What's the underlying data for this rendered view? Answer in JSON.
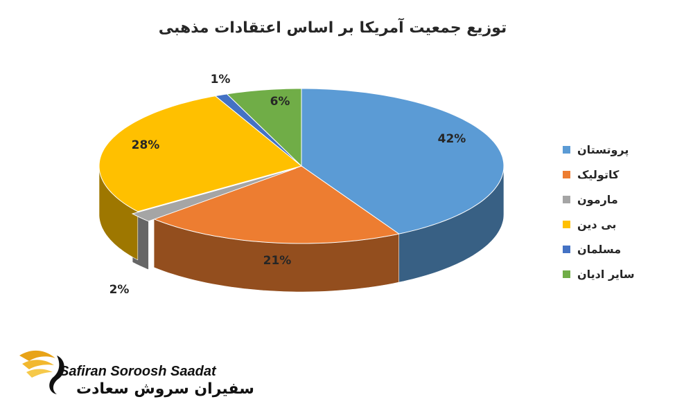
{
  "chart_data": {
    "type": "pie",
    "title": "توزیع جمعیت آمریکا بر اساس اعتقادات مذهبی",
    "categories": [
      "پروتستان",
      "کاتولیک",
      "مارمون",
      "بی دین",
      "مسلمان",
      "سایر ادیان"
    ],
    "values": [
      42,
      21,
      2,
      28,
      1,
      6
    ],
    "value_labels": [
      "42%",
      "21%",
      "2%",
      "28%",
      "1%",
      "6%"
    ],
    "colors": [
      "#5B9BD5",
      "#ED7D31",
      "#A5A5A5",
      "#FFC000",
      "#4472C4",
      "#70AD47"
    ],
    "legend_position": "right",
    "style": "3d"
  },
  "brand": {
    "name_en": "Safiran Soroosh Saadat",
    "name_fa": "سفیران سروش سعادت",
    "logo_icon": "golden-wing-icon"
  }
}
